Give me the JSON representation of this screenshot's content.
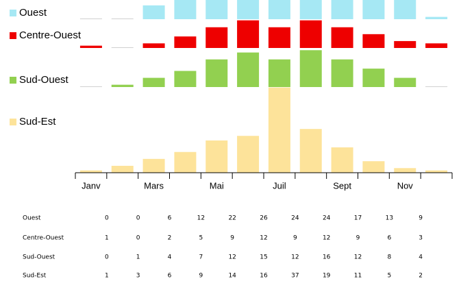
{
  "chart_data": {
    "type": "bar",
    "categories": [
      "Janv",
      null,
      "Mars",
      null,
      "Mai",
      null,
      "Juil",
      null,
      "Sept",
      null,
      "Nov",
      null
    ],
    "series": [
      {
        "name": "Ouest",
        "color": "#a6e8f4",
        "values": [
          0,
          0,
          6,
          12,
          22,
          26,
          24,
          24,
          17,
          13,
          9,
          1
        ]
      },
      {
        "name": "Centre-Ouest",
        "color": "#ee0000",
        "values": [
          1,
          0,
          2,
          5,
          9,
          12,
          9,
          12,
          9,
          6,
          3,
          2
        ]
      },
      {
        "name": "Sud-Ouest",
        "color": "#92d050",
        "values": [
          0,
          1,
          4,
          7,
          12,
          15,
          12,
          16,
          12,
          8,
          4,
          0
        ]
      },
      {
        "name": "Sud-Est",
        "color": "#fde39a",
        "values": [
          1,
          3,
          6,
          9,
          14,
          16,
          37,
          19,
          11,
          5,
          2,
          1
        ]
      }
    ]
  }
}
